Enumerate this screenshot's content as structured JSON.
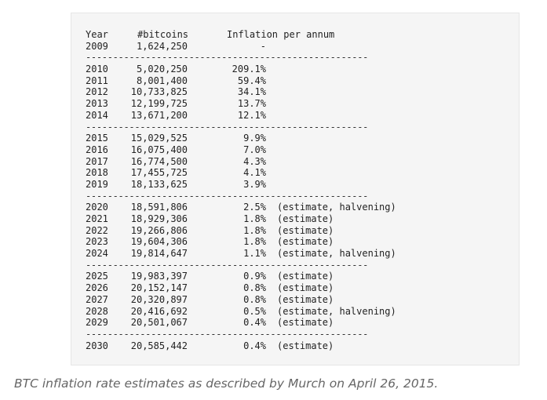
{
  "table": {
    "header": {
      "year": "Year",
      "bitcoins": "#bitcoins",
      "inflation": "Inflation per annum"
    },
    "first_row": {
      "year": "2009",
      "bitcoins": "1,624,250",
      "inflation": "-"
    },
    "separator": "-----------------------------------------------------------",
    "groups": [
      [
        {
          "year": "2010",
          "bitcoins": "5,020,250",
          "inflation": "209.1%",
          "note": ""
        },
        {
          "year": "2011",
          "bitcoins": "8,001,400",
          "inflation": "59.4%",
          "note": ""
        },
        {
          "year": "2012",
          "bitcoins": "10,733,825",
          "inflation": "34.1%",
          "note": ""
        },
        {
          "year": "2013",
          "bitcoins": "12,199,725",
          "inflation": "13.7%",
          "note": ""
        },
        {
          "year": "2014",
          "bitcoins": "13,671,200",
          "inflation": "12.1%",
          "note": ""
        }
      ],
      [
        {
          "year": "2015",
          "bitcoins": "15,029,525",
          "inflation": "9.9%",
          "note": ""
        },
        {
          "year": "2016",
          "bitcoins": "16,075,400",
          "inflation": "7.0%",
          "note": ""
        },
        {
          "year": "2017",
          "bitcoins": "16,774,500",
          "inflation": "4.3%",
          "note": ""
        },
        {
          "year": "2018",
          "bitcoins": "17,455,725",
          "inflation": "4.1%",
          "note": ""
        },
        {
          "year": "2019",
          "bitcoins": "18,133,625",
          "inflation": "3.9%",
          "note": ""
        }
      ],
      [
        {
          "year": "2020",
          "bitcoins": "18,591,806",
          "inflation": "2.5%",
          "note": "(estimate, halvening)"
        },
        {
          "year": "2021",
          "bitcoins": "18,929,306",
          "inflation": "1.8%",
          "note": "(estimate)"
        },
        {
          "year": "2022",
          "bitcoins": "19,266,806",
          "inflation": "1.8%",
          "note": "(estimate)"
        },
        {
          "year": "2023",
          "bitcoins": "19,604,306",
          "inflation": "1.8%",
          "note": "(estimate)"
        },
        {
          "year": "2024",
          "bitcoins": "19,814,647",
          "inflation": "1.1%",
          "note": "(estimate, halvening)"
        }
      ],
      [
        {
          "year": "2025",
          "bitcoins": "19,983,397",
          "inflation": "0.9%",
          "note": "(estimate)"
        },
        {
          "year": "2026",
          "bitcoins": "20,152,147",
          "inflation": "0.8%",
          "note": "(estimate)"
        },
        {
          "year": "2027",
          "bitcoins": "20,320,897",
          "inflation": "0.8%",
          "note": "(estimate)"
        },
        {
          "year": "2028",
          "bitcoins": "20,416,692",
          "inflation": "0.5%",
          "note": "(estimate, halvening)"
        },
        {
          "year": "2029",
          "bitcoins": "20,501,067",
          "inflation": "0.4%",
          "note": "(estimate)"
        }
      ],
      [
        {
          "year": "2030",
          "bitcoins": "20,585,442",
          "inflation": "0.4%",
          "note": "(estimate)"
        }
      ]
    ]
  },
  "caption": "BTC inflation rate estimates as described by Murch on April 26, 2015."
}
